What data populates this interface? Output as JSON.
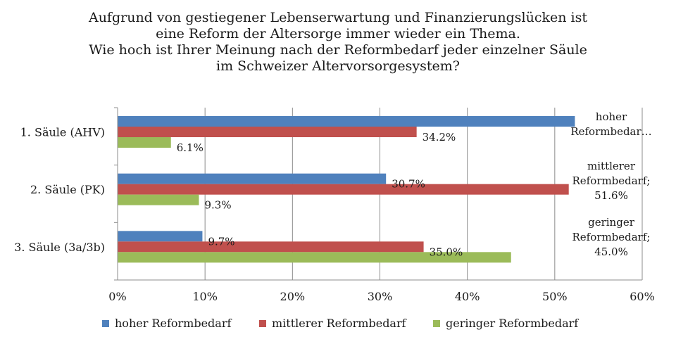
{
  "chart_data": {
    "type": "bar",
    "orientation": "horizontal",
    "title_lines": [
      "Aufgrund von gestiegener Lebenserwartung und Finanzierungslücken ist",
      "eine Reform der Altersorge immer wieder ein Thema.",
      "Wie hoch ist Ihrer Meinung nach der Reformbedarf jeder einzelner Säule",
      "im Schweizer Altervorsorgesystem?"
    ],
    "categories": [
      "1. Säule (AHV)",
      "2. Säule (PK)",
      "3. Säule (3a/3b)"
    ],
    "series": [
      {
        "name": "hoher Reformbedarf",
        "color": "#4f81bd",
        "values": [
          52.3,
          30.7,
          9.7
        ],
        "labels": [
          "",
          "30.7%",
          "9.7%"
        ]
      },
      {
        "name": "mittlerer Reformbedarf",
        "color": "#c0504d",
        "values": [
          34.2,
          51.6,
          35.0
        ],
        "labels": [
          "34.2%",
          "",
          "35.0%"
        ]
      },
      {
        "name": "geringer Reformbedarf",
        "color": "#9bbb59",
        "values": [
          6.1,
          9.3,
          45.0
        ],
        "labels": [
          "6.1%",
          "9.3%",
          ""
        ]
      }
    ],
    "annotations": [
      {
        "category": "1. Säule (AHV)",
        "lines": [
          "hoher",
          "Reformbedar…"
        ]
      },
      {
        "category": "2. Säule (PK)",
        "lines": [
          "mittlerer",
          "Reformbedarf;",
          "51.6%"
        ]
      },
      {
        "category": "3. Säule (3a/3b)",
        "lines": [
          "geringer",
          "Reformbedarf;",
          "45.0%"
        ]
      }
    ],
    "xlim": [
      0,
      60
    ],
    "xticks": [
      0,
      10,
      20,
      30,
      40,
      50,
      60
    ],
    "tick_suffix": "%",
    "grid": "vertical",
    "legend_position": "bottom"
  }
}
